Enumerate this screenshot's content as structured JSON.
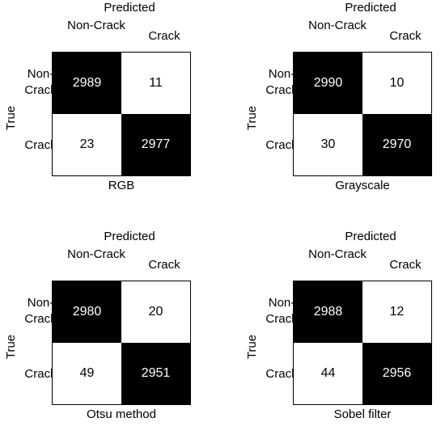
{
  "chart_data": [
    {
      "type": "heatmap",
      "title": "RGB",
      "x_axis_title": "Predicted",
      "y_axis_title": "True",
      "x_labels": [
        "Non-Crack",
        "Crack"
      ],
      "y_labels": [
        "Non-Crack",
        "Crack"
      ],
      "matrix": [
        [
          2989,
          11
        ],
        [
          23,
          2977
        ]
      ]
    },
    {
      "type": "heatmap",
      "title": "Grayscale",
      "x_axis_title": "Predicted",
      "y_axis_title": "True",
      "x_labels": [
        "Non-Crack",
        "Crack"
      ],
      "y_labels": [
        "Non-Crack",
        "Crack"
      ],
      "matrix": [
        [
          2990,
          10
        ],
        [
          30,
          2970
        ]
      ]
    },
    {
      "type": "heatmap",
      "title": "Otsu method",
      "x_axis_title": "Predicted",
      "y_axis_title": "True",
      "x_labels": [
        "Non-Crack",
        "Crack"
      ],
      "y_labels": [
        "Non-Crack",
        "Crack"
      ],
      "matrix": [
        [
          2980,
          20
        ],
        [
          49,
          2951
        ]
      ]
    },
    {
      "type": "heatmap",
      "title": "Sobel filter",
      "x_axis_title": "Predicted",
      "y_axis_title": "True",
      "x_labels": [
        "Non-Crack",
        "Crack"
      ],
      "y_labels": [
        "Non-Crack",
        "Crack"
      ],
      "matrix": [
        [
          2988,
          12
        ],
        [
          44,
          2956
        ]
      ]
    }
  ],
  "colors": {
    "diagonal": "#000000",
    "off_diagonal": "#ffffff",
    "text_on_dark": "#ffffff",
    "text_on_light": "#000000"
  }
}
